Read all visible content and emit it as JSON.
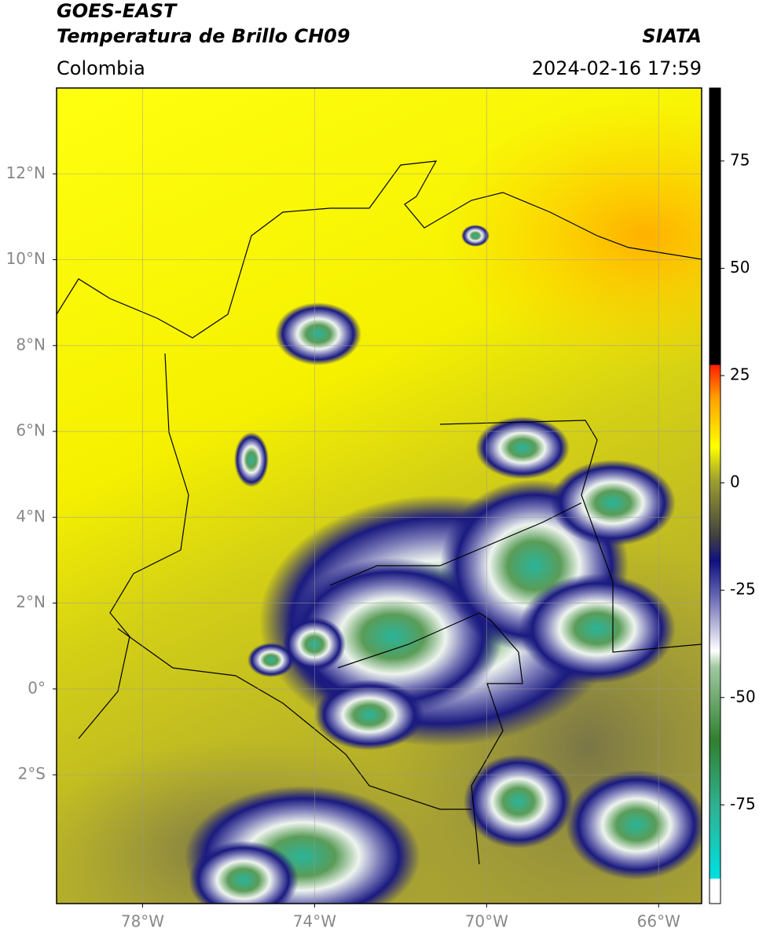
{
  "header": {
    "title_line1": "GOES-EAST",
    "title_line2": "Temperatura de Brillo CH09",
    "region": "Colombia",
    "source": "SIATA",
    "timestamp": "2024-02-16 17:59"
  },
  "map": {
    "xlim": [
      -80,
      -65
    ],
    "ylim": [
      -5,
      14
    ],
    "grid": true,
    "xticks": [
      {
        "value": -78,
        "label": "78°W"
      },
      {
        "value": -74,
        "label": "74°W"
      },
      {
        "value": -70,
        "label": "70°W"
      },
      {
        "value": -66,
        "label": "66°W"
      }
    ],
    "yticks": [
      {
        "value": 12,
        "label": "12°N"
      },
      {
        "value": 10,
        "label": "10°N"
      },
      {
        "value": 8,
        "label": "8°N"
      },
      {
        "value": 6,
        "label": "6°N"
      },
      {
        "value": 4,
        "label": "4°N"
      },
      {
        "value": 2,
        "label": "2°N"
      },
      {
        "value": 0,
        "label": "0°"
      },
      {
        "value": -2,
        "label": "2°S"
      }
    ]
  },
  "colorbar": {
    "lim": [
      -98,
      92
    ],
    "ticks": [
      75,
      50,
      25,
      0,
      -25,
      -50,
      -75
    ]
  }
}
